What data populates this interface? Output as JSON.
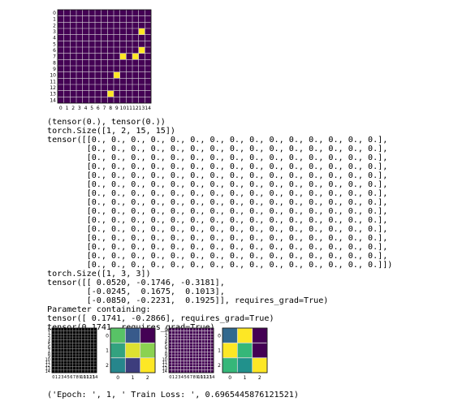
{
  "output": {
    "console_lines": [
      "(tensor(0.), tensor(0.))",
      "torch.Size([1, 2, 15, 15])",
      "tensor([[0., 0., 0., 0., 0., 0., 0., 0., 0., 0., 0., 0., 0., 0., 0.],",
      "        [0., 0., 0., 0., 0., 0., 0., 0., 0., 0., 0., 0., 0., 0., 0.],",
      "        [0., 0., 0., 0., 0., 0., 0., 0., 0., 0., 0., 0., 0., 0., 0.],",
      "        [0., 0., 0., 0., 0., 0., 0., 0., 0., 0., 0., 0., 0., 0., 0.],",
      "        [0., 0., 0., 0., 0., 0., 0., 0., 0., 0., 0., 0., 0., 0., 0.],",
      "        [0., 0., 0., 0., 0., 0., 0., 0., 0., 0., 0., 0., 0., 0., 0.],",
      "        [0., 0., 0., 0., 0., 0., 0., 0., 0., 0., 0., 0., 0., 0., 0.],",
      "        [0., 0., 0., 0., 0., 0., 0., 0., 0., 0., 0., 0., 0., 0., 0.],",
      "        [0., 0., 0., 0., 0., 0., 0., 0., 0., 0., 0., 0., 0., 0., 0.],",
      "        [0., 0., 0., 0., 0., 0., 0., 0., 0., 0., 0., 0., 0., 0., 0.],",
      "        [0., 0., 0., 0., 0., 0., 0., 0., 0., 0., 0., 0., 0., 0., 0.],",
      "        [0., 0., 0., 0., 0., 0., 0., 0., 0., 0., 0., 0., 0., 0., 0.],",
      "        [0., 0., 0., 0., 0., 0., 0., 0., 0., 0., 0., 0., 0., 0., 0.],",
      "        [0., 0., 0., 0., 0., 0., 0., 0., 0., 0., 0., 0., 0., 0., 0.],",
      "        [0., 0., 0., 0., 0., 0., 0., 0., 0., 0., 0., 0., 0., 0., 0.]])",
      "torch.Size([1, 3, 3])",
      "tensor([[ 0.0520, -0.1746, -0.3181],",
      "        [-0.0245,  0.1675,  0.1013],",
      "        [-0.0850, -0.2231,  0.1925]], requires_grad=True)",
      "Parameter containing:",
      "tensor([ 0.1741, -0.2866], requires_grad=True)",
      "tensor(0.1741, requires_grad=True)"
    ],
    "epoch_line": "('Epoch: ', 1, ' Train Loss: ', 0.6965445876121521)"
  },
  "colors": {
    "background_dark": "#440154",
    "cell_bright": "#fde725",
    "grid_line": "#d9d9d9",
    "black_bg": "#000000"
  },
  "chart_data": [
    {
      "type": "heatmap",
      "rows": 15,
      "cols": 15,
      "x_ticks": [
        "0",
        "1",
        "2",
        "3",
        "4",
        "5",
        "6",
        "7",
        "8",
        "9",
        "10",
        "11",
        "12",
        "13",
        "14"
      ],
      "y_ticks": [
        "0",
        "1",
        "2",
        "3",
        "4",
        "5",
        "6",
        "7",
        "8",
        "9",
        "10",
        "11",
        "12",
        "13",
        "14"
      ],
      "cells": [
        [
          13,
          3
        ],
        [
          13,
          6
        ],
        [
          10,
          7
        ],
        [
          12,
          7
        ],
        [
          9,
          10
        ],
        [
          8,
          13
        ]
      ],
      "grid": true
    },
    {
      "type": "heatmap",
      "rows": 15,
      "cols": 15,
      "x_ticks": [
        "0",
        "1",
        "2",
        "3",
        "4",
        "5",
        "6",
        "7",
        "8",
        "9",
        "10",
        "11",
        "12",
        "13",
        "14"
      ],
      "y_ticks": [
        "0",
        "1",
        "2",
        "3",
        "4",
        "5",
        "6",
        "7",
        "8",
        "9",
        "10",
        "11",
        "12",
        "13",
        "14"
      ],
      "uniform": "black",
      "grid": true
    },
    {
      "type": "heatmap",
      "rows": 3,
      "cols": 3,
      "x_ticks": [
        "0",
        "1",
        "2"
      ],
      "y_ticks": [
        "0",
        "1",
        "2"
      ],
      "values": [
        [
          0.052,
          -0.1746,
          -0.3181
        ],
        [
          -0.0245,
          0.1675,
          0.1013
        ],
        [
          -0.085,
          -0.2231,
          0.1925
        ]
      ],
      "grid": true
    },
    {
      "type": "heatmap",
      "rows": 15,
      "cols": 15,
      "x_ticks": [
        "0",
        "1",
        "2",
        "3",
        "4",
        "5",
        "6",
        "7",
        "8",
        "9",
        "10",
        "11",
        "12",
        "13",
        "14"
      ],
      "y_ticks": [
        "0",
        "1",
        "2",
        "3",
        "4",
        "5",
        "6",
        "7",
        "8",
        "9",
        "10",
        "11",
        "12",
        "13",
        "14"
      ],
      "uniform": "dark-purple",
      "grid": true
    },
    {
      "type": "heatmap",
      "rows": 3,
      "cols": 3,
      "x_ticks": [
        "0",
        "1",
        "2"
      ],
      "y_ticks": [
        "0",
        "1",
        "2"
      ],
      "colors": [
        [
          "#31688e",
          "#fde725",
          "#440154"
        ],
        [
          "#fde725",
          "#35b779",
          "#440154"
        ],
        [
          "#35b779",
          "#21918c",
          "#fde725"
        ]
      ],
      "grid": true
    }
  ]
}
